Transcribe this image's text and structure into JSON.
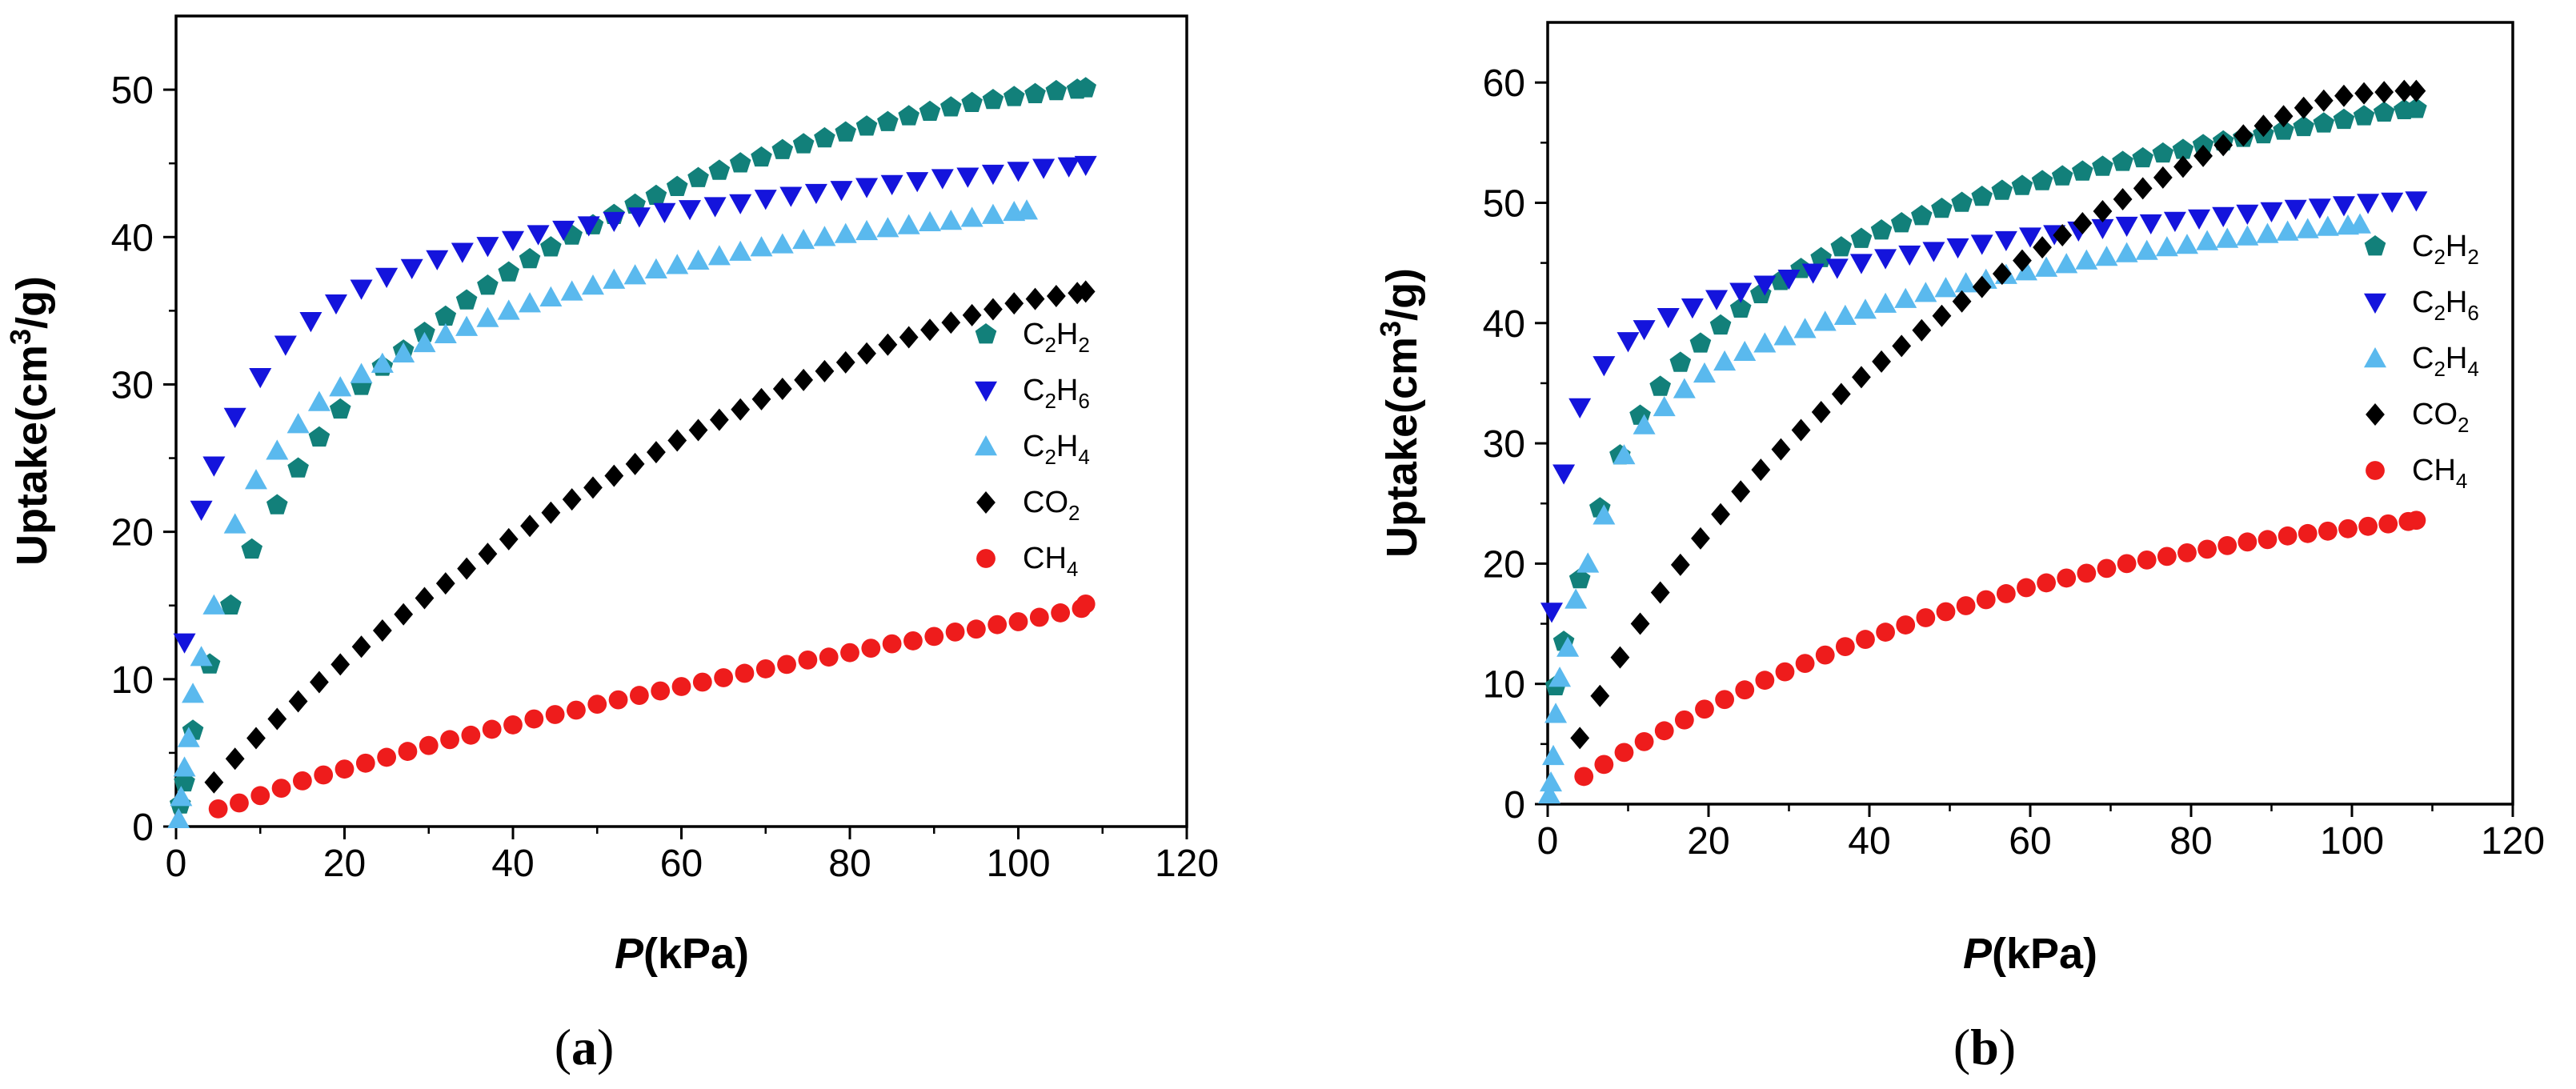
{
  "chart_data": [
    {
      "type": "scatter",
      "panel_label": "(a)",
      "xlabel": "P(kPa)",
      "ylabel": "Uptake(cm3/g)",
      "xlim": [
        0,
        120
      ],
      "ylim": [
        0,
        55
      ],
      "xticks": [
        0,
        20,
        40,
        60,
        80,
        100,
        120
      ],
      "yticks": [
        0,
        10,
        20,
        30,
        40,
        50
      ],
      "legend_position": "right-middle",
      "series": [
        {
          "name": "C2H2",
          "label_base": "C",
          "label_sub1": "2",
          "label_mid": "H",
          "label_sub2": "2",
          "marker": "pentagon",
          "color": "#12807a",
          "x": [
            0.5,
            1,
            2,
            4,
            6.5,
            9,
            12,
            14.5,
            17,
            19.5,
            22,
            24.5,
            27,
            29.5,
            32,
            34.5,
            37,
            39.5,
            42,
            44.5,
            47,
            49.5,
            52,
            54.5,
            57,
            59.5,
            62,
            64.5,
            67,
            69.5,
            72,
            74.5,
            77,
            79.5,
            82,
            84.5,
            87,
            89.5,
            92,
            94.5,
            97,
            99.5,
            102,
            104.5,
            107,
            108
          ],
          "y": [
            1.5,
            3,
            6.5,
            11,
            15,
            18.8,
            21.8,
            24.3,
            26.4,
            28.3,
            29.9,
            31.2,
            32.3,
            33.5,
            34.6,
            35.7,
            36.7,
            37.6,
            38.5,
            39.3,
            40.1,
            40.8,
            41.5,
            42.2,
            42.8,
            43.4,
            44,
            44.5,
            45,
            45.4,
            45.9,
            46.3,
            46.7,
            47.1,
            47.5,
            47.8,
            48.2,
            48.5,
            48.8,
            49.1,
            49.3,
            49.5,
            49.7,
            49.9,
            50.0,
            50.1
          ]
        },
        {
          "name": "C2H6",
          "label_base": "C",
          "label_sub1": "2",
          "label_mid": "H",
          "label_sub2": "6",
          "marker": "triangle-down",
          "color": "#1414dc",
          "x": [
            1,
            3,
            4.5,
            7,
            10,
            13,
            16,
            19,
            22,
            25,
            28,
            31,
            34,
            37,
            40,
            43,
            46,
            49,
            52,
            55,
            58,
            61,
            64,
            67,
            70,
            73,
            76,
            79,
            82,
            85,
            88,
            91,
            94,
            97,
            100,
            103,
            106,
            108
          ],
          "y": [
            12.5,
            21.5,
            24.5,
            27.8,
            30.5,
            32.7,
            34.3,
            35.5,
            36.5,
            37.3,
            37.9,
            38.5,
            39,
            39.4,
            39.8,
            40.2,
            40.5,
            40.8,
            41.1,
            41.4,
            41.7,
            41.9,
            42.1,
            42.3,
            42.6,
            42.8,
            43,
            43.2,
            43.4,
            43.6,
            43.8,
            44,
            44.1,
            44.3,
            44.5,
            44.7,
            44.8,
            44.9
          ]
        },
        {
          "name": "C2H4",
          "label_base": "C",
          "label_sub1": "2",
          "label_mid": "H",
          "label_sub2": "4",
          "marker": "triangle-up",
          "color": "#5ab9ee",
          "x": [
            0.3,
            0.6,
            1,
            1.5,
            2,
            3,
            4.5,
            7,
            9.5,
            12,
            14.5,
            17,
            19.5,
            22,
            24.5,
            27,
            29.5,
            32,
            34.5,
            37,
            39.5,
            42,
            44.5,
            47,
            49.5,
            52,
            54.5,
            57,
            59.5,
            62,
            64.5,
            67,
            69.5,
            72,
            74.5,
            77,
            79.5,
            82,
            84.5,
            87,
            89.5,
            92,
            94.5,
            97,
            99.5,
            101
          ],
          "y": [
            0.5,
            2,
            4,
            6,
            9,
            11.5,
            15,
            20.5,
            23.5,
            25.5,
            27.3,
            28.8,
            29.8,
            30.7,
            31.4,
            32.1,
            32.8,
            33.4,
            33.9,
            34.5,
            35,
            35.5,
            35.9,
            36.3,
            36.7,
            37.1,
            37.4,
            37.8,
            38.1,
            38.4,
            38.7,
            39,
            39.3,
            39.5,
            39.8,
            40,
            40.2,
            40.4,
            40.6,
            40.8,
            41,
            41.1,
            41.3,
            41.5,
            41.7,
            41.8
          ]
        },
        {
          "name": "CO2",
          "label_base": "CO",
          "label_sub1": "2",
          "label_mid": "",
          "label_sub2": "",
          "marker": "diamond",
          "color": "#000000",
          "x": [
            4.5,
            7,
            9.5,
            12,
            14.5,
            17,
            19.5,
            22,
            24.5,
            27,
            29.5,
            32,
            34.5,
            37,
            39.5,
            42,
            44.5,
            47,
            49.5,
            52,
            54.5,
            57,
            59.5,
            62,
            64.5,
            67,
            69.5,
            72,
            74.5,
            77,
            79.5,
            82,
            84.5,
            87,
            89.5,
            92,
            94.5,
            97,
            99.5,
            102,
            104.5,
            107,
            108
          ],
          "y": [
            3,
            4.6,
            6,
            7.3,
            8.5,
            9.8,
            11,
            12.2,
            13.3,
            14.4,
            15.5,
            16.5,
            17.5,
            18.5,
            19.5,
            20.4,
            21.3,
            22.2,
            23,
            23.8,
            24.6,
            25.4,
            26.2,
            26.9,
            27.6,
            28.3,
            29,
            29.7,
            30.3,
            30.9,
            31.5,
            32.1,
            32.7,
            33.2,
            33.7,
            34.2,
            34.7,
            35.1,
            35.5,
            35.8,
            36.0,
            36.2,
            36.3
          ]
        },
        {
          "name": "CH4",
          "label_base": "CH",
          "label_sub1": "4",
          "label_mid": "",
          "label_sub2": "",
          "marker": "circle",
          "color": "#ee1c1c",
          "x": [
            5,
            7.5,
            10,
            12.5,
            15,
            17.5,
            20,
            22.5,
            25,
            27.5,
            30,
            32.5,
            35,
            37.5,
            40,
            42.5,
            45,
            47.5,
            50,
            52.5,
            55,
            57.5,
            60,
            62.5,
            65,
            67.5,
            70,
            72.5,
            75,
            77.5,
            80,
            82.5,
            85,
            87.5,
            90,
            92.5,
            95,
            97.5,
            100,
            102.5,
            105,
            107.5,
            108
          ],
          "y": [
            1.2,
            1.6,
            2.1,
            2.6,
            3.1,
            3.5,
            3.9,
            4.3,
            4.7,
            5.1,
            5.5,
            5.9,
            6.2,
            6.6,
            6.9,
            7.3,
            7.6,
            7.9,
            8.3,
            8.6,
            8.9,
            9.2,
            9.5,
            9.8,
            10.1,
            10.4,
            10.7,
            11,
            11.3,
            11.5,
            11.8,
            12.1,
            12.4,
            12.6,
            12.9,
            13.2,
            13.4,
            13.7,
            13.9,
            14.2,
            14.5,
            14.8,
            15.1
          ]
        }
      ]
    },
    {
      "type": "scatter",
      "panel_label": "(b)",
      "xlabel": "P(kPa)",
      "ylabel": "Uptake(cm3/g)",
      "xlim": [
        0,
        120
      ],
      "ylim": [
        0,
        65
      ],
      "xticks": [
        0,
        20,
        40,
        60,
        80,
        100,
        120
      ],
      "yticks": [
        0,
        10,
        20,
        30,
        40,
        50,
        60
      ],
      "legend_position": "top-right",
      "series": [
        {
          "name": "C2H2",
          "label_base": "C",
          "label_sub1": "2",
          "label_mid": "H",
          "label_sub2": "2",
          "marker": "pentagon",
          "color": "#12807a",
          "x": [
            1,
            2,
            4,
            6.5,
            9,
            11.5,
            14,
            16.5,
            19,
            21.5,
            24,
            26.5,
            29,
            31.5,
            34,
            36.5,
            39,
            41.5,
            44,
            46.5,
            49,
            51.5,
            54,
            56.5,
            59,
            61.5,
            64,
            66.5,
            69,
            71.5,
            74,
            76.5,
            79,
            81.5,
            84,
            86.5,
            89,
            91.5,
            94,
            96.5,
            99,
            101.5,
            104,
            106.5,
            108
          ],
          "y": [
            9.8,
            13.5,
            18.7,
            24.6,
            29,
            32.3,
            34.7,
            36.7,
            38.3,
            39.8,
            41.2,
            42.4,
            43.5,
            44.5,
            45.4,
            46.3,
            47,
            47.7,
            48.3,
            48.9,
            49.5,
            50,
            50.5,
            51,
            51.4,
            51.8,
            52.2,
            52.6,
            53,
            53.4,
            53.7,
            54.1,
            54.4,
            54.8,
            55.1,
            55.4,
            55.7,
            56,
            56.3,
            56.6,
            56.9,
            57.2,
            57.5,
            57.7,
            57.8
          ]
        },
        {
          "name": "C2H6",
          "label_base": "C",
          "label_sub1": "2",
          "label_mid": "H",
          "label_sub2": "6",
          "marker": "triangle-down",
          "color": "#1414dc",
          "x": [
            0.5,
            2,
            4,
            7,
            10,
            12,
            15,
            18,
            21,
            24,
            27,
            30,
            33,
            36,
            39,
            42,
            45,
            48,
            51,
            54,
            57,
            60,
            63,
            66,
            69,
            72,
            75,
            78,
            81,
            84,
            87,
            90,
            93,
            96,
            99,
            102,
            105,
            108
          ],
          "y": [
            16,
            27.5,
            33,
            36.5,
            38.5,
            39.5,
            40.5,
            41.3,
            42,
            42.6,
            43.2,
            43.7,
            44.2,
            44.6,
            45,
            45.4,
            45.7,
            46,
            46.3,
            46.6,
            46.9,
            47.2,
            47.4,
            47.7,
            47.9,
            48.1,
            48.3,
            48.5,
            48.7,
            48.9,
            49.1,
            49.3,
            49.5,
            49.6,
            49.8,
            50,
            50.1,
            50.2
          ]
        },
        {
          "name": "C2H4",
          "label_base": "C",
          "label_sub1": "2",
          "label_mid": "H",
          "label_sub2": "4",
          "marker": "triangle-up",
          "color": "#5ab9ee",
          "x": [
            0.2,
            0.4,
            0.7,
            1,
            1.5,
            2.5,
            3.5,
            5,
            7,
            9.5,
            12,
            14.5,
            17,
            19.5,
            22,
            24.5,
            27,
            29.5,
            32,
            34.5,
            37,
            39.5,
            42,
            44.5,
            47,
            49.5,
            52,
            54.5,
            57,
            59.5,
            62,
            64.5,
            67,
            69.5,
            72,
            74.5,
            77,
            79.5,
            82,
            84.5,
            87,
            89.5,
            92,
            94.5,
            97,
            99.5,
            101
          ],
          "y": [
            0.8,
            1.8,
            4,
            7.5,
            10.5,
            13,
            17,
            20,
            24,
            29,
            31.5,
            33,
            34.5,
            35.8,
            36.8,
            37.6,
            38.3,
            38.9,
            39.5,
            40.1,
            40.6,
            41.1,
            41.6,
            42,
            42.5,
            42.9,
            43.3,
            43.6,
            44,
            44.3,
            44.6,
            44.9,
            45.2,
            45.5,
            45.8,
            46,
            46.3,
            46.5,
            46.8,
            47,
            47.2,
            47.4,
            47.6,
            47.8,
            48,
            48.1,
            48.2
          ]
        },
        {
          "name": "CO2",
          "label_base": "CO",
          "label_sub1": "2",
          "label_mid": "",
          "label_sub2": "",
          "marker": "diamond",
          "color": "#000000",
          "x": [
            4,
            6.5,
            9,
            11.5,
            14,
            16.5,
            19,
            21.5,
            24,
            26.5,
            29,
            31.5,
            34,
            36.5,
            39,
            41.5,
            44,
            46.5,
            49,
            51.5,
            54,
            56.5,
            59,
            61.5,
            64,
            66.5,
            69,
            71.5,
            74,
            76.5,
            79,
            81.5,
            84,
            86.5,
            89,
            91.5,
            94,
            96.5,
            99,
            101.5,
            104,
            106.5,
            108
          ],
          "y": [
            5.5,
            9,
            12.2,
            15,
            17.6,
            19.9,
            22.1,
            24.1,
            26,
            27.8,
            29.5,
            31.1,
            32.6,
            34.1,
            35.5,
            36.8,
            38.1,
            39.4,
            40.6,
            41.8,
            43,
            44.1,
            45.2,
            46.3,
            47.3,
            48.3,
            49.3,
            50.3,
            51.2,
            52.1,
            53,
            53.9,
            54.8,
            55.6,
            56.4,
            57.2,
            57.9,
            58.5,
            58.9,
            59.1,
            59.2,
            59.3,
            59.3
          ]
        },
        {
          "name": "CH4",
          "label_base": "CH",
          "label_sub1": "4",
          "label_mid": "",
          "label_sub2": "",
          "marker": "circle",
          "color": "#ee1c1c",
          "x": [
            4.5,
            7,
            9.5,
            12,
            14.5,
            17,
            19.5,
            22,
            24.5,
            27,
            29.5,
            32,
            34.5,
            37,
            39.5,
            42,
            44.5,
            47,
            49.5,
            52,
            54.5,
            57,
            59.5,
            62,
            64.5,
            67,
            69.5,
            72,
            74.5,
            77,
            79.5,
            82,
            84.5,
            87,
            89.5,
            92,
            94.5,
            97,
            99.5,
            102,
            104.5,
            107,
            108
          ],
          "y": [
            2.3,
            3.3,
            4.3,
            5.2,
            6.1,
            7,
            7.9,
            8.7,
            9.5,
            10.3,
            11,
            11.7,
            12.4,
            13.1,
            13.7,
            14.3,
            14.9,
            15.5,
            16,
            16.5,
            17,
            17.5,
            18,
            18.4,
            18.8,
            19.2,
            19.6,
            20,
            20.3,
            20.6,
            20.9,
            21.2,
            21.5,
            21.8,
            22,
            22.3,
            22.5,
            22.7,
            22.9,
            23.1,
            23.3,
            23.5,
            23.6
          ]
        }
      ]
    }
  ]
}
